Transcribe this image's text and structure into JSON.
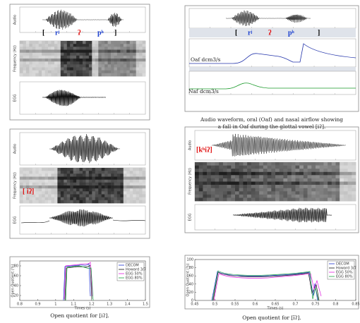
{
  "left_column": {
    "waveform_figure": {
      "panel_labels": [
        "Audio",
        "Frequency (Hz)",
        "EGG"
      ],
      "transcription": [
        "[",
        "rʲ",
        "ʔ",
        "pʰ",
        "]"
      ]
    },
    "spectrogram_figure": {
      "panel_labels": [
        "Audio",
        "Frequency (Hz)",
        "EGG"
      ],
      "transcription": "[ iʔ]"
    },
    "oq_chart": {
      "y_label": "Open Quotient (%)",
      "x_label": "Times (s)",
      "x_ticks": [
        "0.8",
        "0.9",
        "1",
        "1.1",
        "1.2",
        "1.3",
        "1.4",
        "1.5"
      ],
      "y_ticks": [
        "20",
        "40",
        "60",
        "80"
      ],
      "legend": [
        "DECOM",
        "Howard 3/7",
        "EGG 50%",
        "EGG 80%"
      ]
    },
    "caption": "Open quotient for [iʔ]."
  },
  "right_column": {
    "airflow_figure": {
      "transcription": [
        "[",
        "rʲ",
        "ʔ",
        "pʰ",
        "]"
      ],
      "oaf_label": "Oaf dcm3/s",
      "naf_label": "Naf dcm3/s"
    },
    "airflow_caption": [
      "Audio waveform, oral (Oaf) and nasal airflow showing",
      "a fall in Oaf during the glottal vowel [iʔ]."
    ],
    "spectrogram_figure": {
      "panel_labels": [
        "Audio",
        "Frequency (Hz)",
        "EGG"
      ],
      "transcription": "[kʰiʔ]"
    },
    "oq_chart": {
      "y_label": "Open Quotient (%)",
      "x_label": "Times (s)",
      "x_ticks": [
        "0.45",
        "0.5",
        "0.55",
        "0.6",
        "0.65",
        "0.7",
        "0.75",
        "0.8",
        "0.85"
      ],
      "y_ticks": [
        "0",
        "20",
        "40",
        "60",
        "80",
        "100"
      ],
      "legend": [
        "DECOM",
        "Howard 3/7",
        "EGG 50%",
        "EGG 80%"
      ]
    },
    "caption": "Open quotient for [ĩʔ]."
  }
}
